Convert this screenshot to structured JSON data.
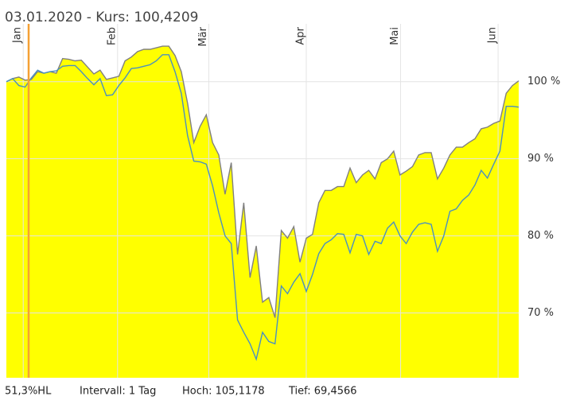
{
  "chart_data": {
    "type": "line",
    "title": "03.01.2020  -  Kurs: 100,4209",
    "footer": [
      "51,3%HL",
      "Intervall: 1 Tag",
      "Hoch: 105,1178",
      "Tief: 69,4566"
    ],
    "xlim": [
      0,
      82
    ],
    "xticks": [
      {
        "value": 2.7,
        "label": "Jan"
      },
      {
        "value": 17.8,
        "label": "Feb"
      },
      {
        "value": 32.4,
        "label": "Mär"
      },
      {
        "value": 48.0,
        "label": "Apr"
      },
      {
        "value": 63.1,
        "label": "Mai"
      },
      {
        "value": 78.7,
        "label": "Jun"
      }
    ],
    "ylim": [
      61.6,
      107.5
    ],
    "yticks": [
      {
        "value": 70,
        "label": "70 %"
      },
      {
        "value": 80,
        "label": "80 %"
      },
      {
        "value": 90,
        "label": "90 %"
      },
      {
        "value": 100,
        "label": "100 %"
      }
    ],
    "grid": true,
    "series": [
      {
        "color": "#808080",
        "fill": "#ffff00",
        "values": [
          100,
          100.4,
          100.6,
          100.2,
          100.3,
          101.3,
          101.1,
          101.3,
          101.1,
          103,
          102.9,
          102.7,
          102.8,
          101.9,
          101,
          101.5,
          100.3,
          100.5,
          100.7,
          102.7,
          103.2,
          103.9,
          104.2,
          104.2,
          104.4,
          104.6,
          104.6,
          103.4,
          101.3,
          97.2,
          92.1,
          94.2,
          95.7,
          92.1,
          90.5,
          85.4,
          89.5,
          77.6,
          84.3,
          74.6,
          78.7,
          71.4,
          72,
          69.4,
          80.7,
          79.7,
          81.2,
          76.6,
          79.7,
          80.2,
          84.3,
          85.9,
          85.9,
          86.4,
          86.4,
          88.8,
          86.9,
          87.9,
          88.5,
          87.4,
          89.5,
          90,
          91,
          87.9,
          88.4,
          89,
          90.5,
          90.8,
          90.8,
          87.4,
          88.8,
          90.5,
          91.5,
          91.5,
          92.1,
          92.6,
          93.9,
          94.1,
          94.6,
          94.9,
          98.5,
          99.5,
          100.1
        ]
      },
      {
        "color": "#4a90c0",
        "values": [
          100,
          100.4,
          99.5,
          99.3,
          100.5,
          101.5,
          101.1,
          101.3,
          101.4,
          102,
          102.1,
          102.1,
          101.3,
          100.4,
          99.6,
          100.4,
          98.2,
          98.3,
          99.5,
          100.5,
          101.7,
          101.8,
          102,
          102.2,
          102.7,
          103.5,
          103.5,
          101.3,
          98.5,
          93,
          89.7,
          89.6,
          89.3,
          86.5,
          83,
          80,
          79,
          69.1,
          67.5,
          66,
          64,
          67.5,
          66.3,
          66,
          73.5,
          72.5,
          74,
          75.1,
          72.8,
          75,
          77.7,
          79,
          79.5,
          80.3,
          80.2,
          77.8,
          80.2,
          80,
          77.6,
          79.3,
          79,
          81,
          81.8,
          80,
          79,
          80.5,
          81.5,
          81.7,
          81.5,
          78,
          80,
          83.2,
          83.5,
          84.6,
          85.3,
          86.6,
          88.5,
          87.5,
          89.3,
          91,
          96.8,
          96.8,
          96.7
        ]
      }
    ]
  }
}
